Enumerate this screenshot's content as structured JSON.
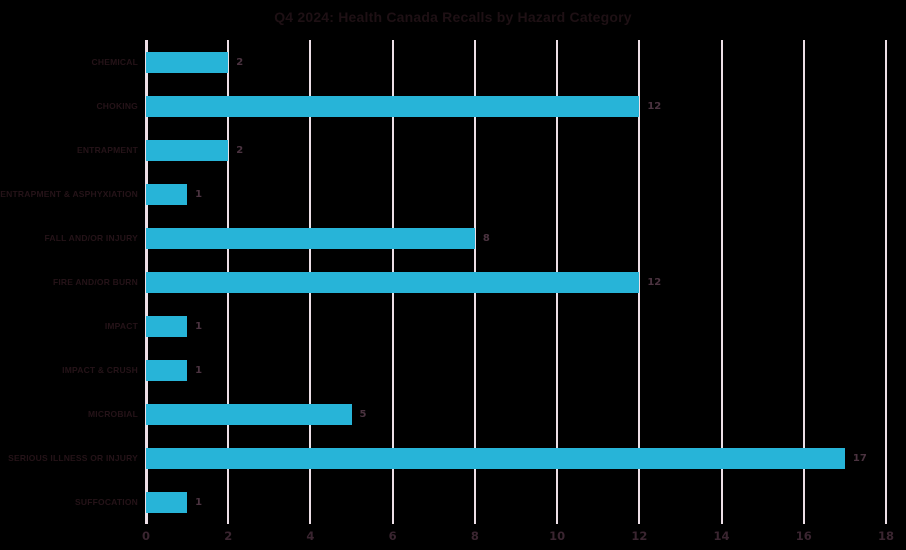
{
  "title": "Q4 2024: Health Canada Recalls by Hazard Category",
  "colors": {
    "background": "#000000",
    "bar": "#27b4d8",
    "gridline": "#ecdfe6",
    "title_text": "#1e1014",
    "category_text": "#251318",
    "value_text": "#4b3340",
    "tick_text": "#3a2530"
  },
  "chart_data": {
    "type": "bar",
    "orientation": "horizontal",
    "title": "Q4 2024: Health Canada Recalls by Hazard Category",
    "categories": [
      "CHEMICAL",
      "CHOKING",
      "ENTRAPMENT",
      "ENTRAPMENT & ASPHYXIATION",
      "FALL AND/OR INJURY",
      "FIRE AND/OR BURN",
      "IMPACT",
      "IMPACT & CRUSH",
      "MICROBIAL",
      "SERIOUS ILLNESS OR INJURY",
      "SUFFOCATION"
    ],
    "values": [
      2,
      12,
      2,
      1,
      8,
      12,
      1,
      1,
      5,
      17,
      1
    ],
    "value_labels": [
      "2",
      "12",
      "2",
      "1",
      "8",
      "12",
      "1",
      "1",
      "5",
      "17",
      "1"
    ],
    "xlabel": "",
    "ylabel": "",
    "xlim": [
      0,
      18
    ],
    "x_ticks": [
      0,
      2,
      4,
      6,
      8,
      10,
      12,
      14,
      16,
      18
    ],
    "grid": "vertical-only",
    "legend": "none",
    "data_labels_position": "outside-end"
  }
}
